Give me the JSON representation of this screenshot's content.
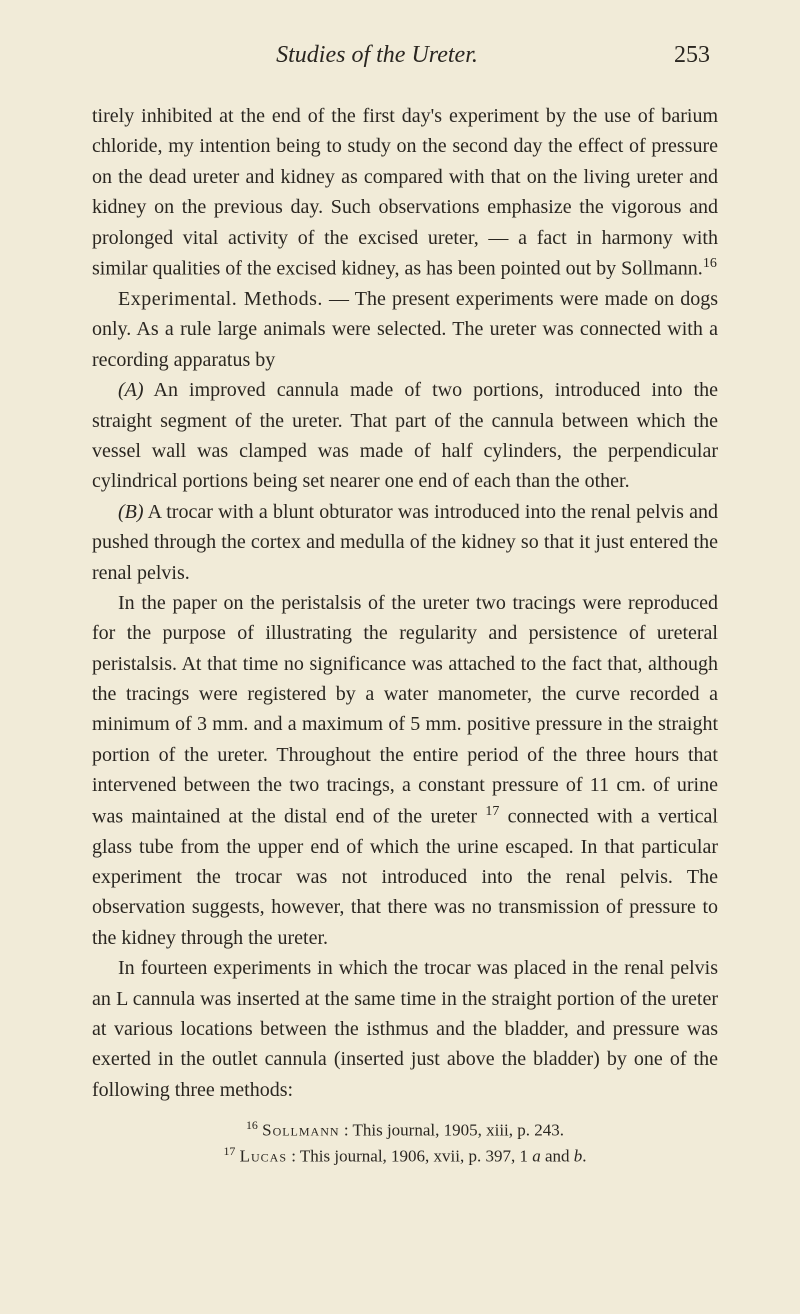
{
  "header": {
    "title": "Studies of the Ureter.",
    "page_number": "253"
  },
  "paragraphs": {
    "p1": "tirely inhibited at the end of the first day's experiment by the use of barium chloride, my intention being to study on the second day the effect of pressure on the dead ureter and kidney as compared with that on the living ureter and kidney on the previous day. Such observations emphasize the vigorous and prolonged vital activity of the excised ureter, — a fact in harmony with similar qualities of the excised kidney, as has been pointed out by Sollmann.",
    "p1_sup": "16",
    "p2_label": "Experimental. Methods.",
    "p2": " — The present experiments were made on dogs only. As a rule large animals were selected. The ureter was connected with a recording apparatus by",
    "p3_label": "(A)",
    "p3": " An improved cannula made of two portions, introduced into the straight segment of the ureter. That part of the cannula between which the vessel wall was clamped was made of half cylinders, the perpendicular cylindrical portions being set nearer one end of each than the other.",
    "p4_label": "(B)",
    "p4": " A trocar with a blunt obturator was introduced into the renal pelvis and pushed through the cortex and medulla of the kidney so that it just entered the renal pelvis.",
    "p5": "In the paper on the peristalsis of the ureter two tracings were reproduced for the purpose of illustrating the regularity and persistence of ureteral peristalsis. At that time no significance was attached to the fact that, although the tracings were registered by a water manometer, the curve recorded a minimum of 3 mm. and a maximum of 5 mm. positive pressure in the straight portion of the ureter. Throughout the entire period of the three hours that intervened between the two tracings, a constant pressure of 11 cm. of urine was maintained at the distal end of the ureter ",
    "p5_sup": "17",
    "p5b": " connected with a vertical glass tube from the upper end of which the urine escaped. In that particular experiment the trocar was not introduced into the renal pelvis. The observation suggests, however, that there was no transmission of pressure to the kidney through the ureter.",
    "p6": "In fourteen experiments in which the trocar was placed in the renal pelvis an L cannula was inserted at the same time in the straight portion of the ureter at various locations between the isthmus and the bladder, and pressure was exerted in the outlet cannula (inserted just above the bladder) by one of the following three methods:"
  },
  "footnotes": {
    "f1_sup": "16",
    "f1_name": "Sollmann",
    "f1_text": " : This journal, 1905, xiii, p. 243.",
    "f2_sup": "17",
    "f2_name": "Lucas",
    "f2_text_a": " : This journal, 1906, xvii, p. 397, 1 ",
    "f2_italic_a": "a",
    "f2_text_b": " and ",
    "f2_italic_b": "b",
    "f2_text_c": "."
  }
}
